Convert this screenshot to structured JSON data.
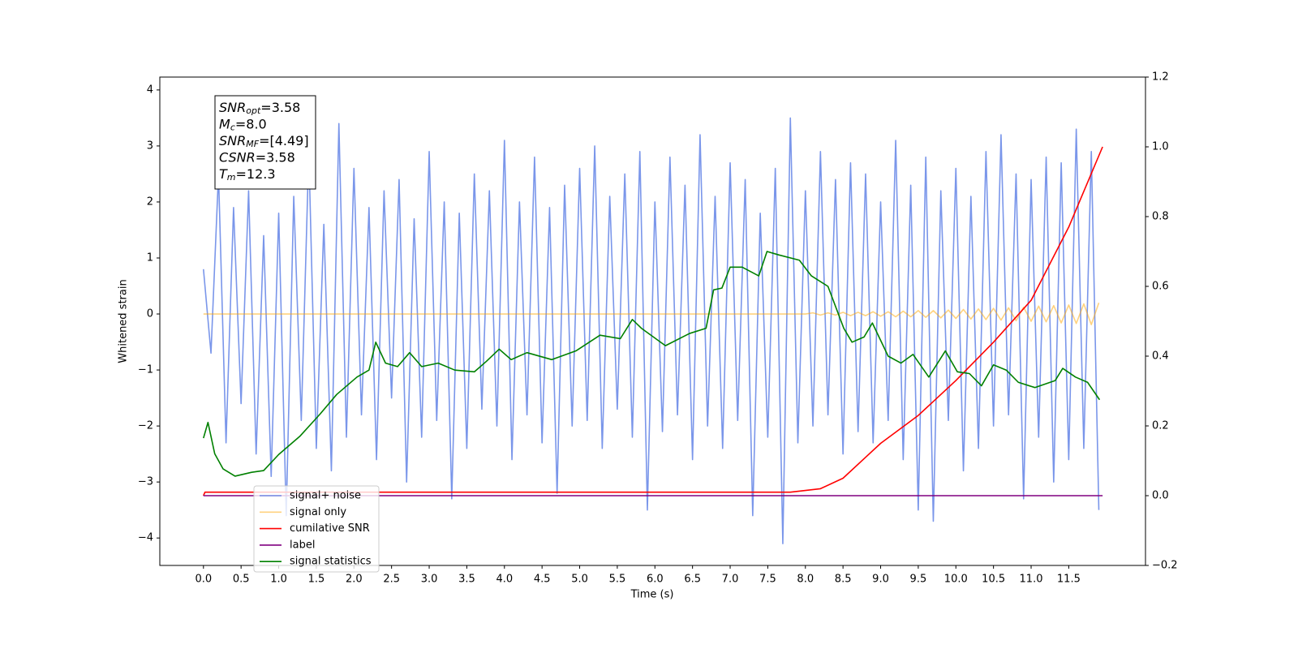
{
  "chart_data": {
    "type": "line",
    "x_label": "Time (s)",
    "y_label": "Whitened strain",
    "xlim": [
      -0.58,
      12.52
    ],
    "ylim": [
      -4.49,
      4.23
    ],
    "y2lim": [
      -0.2,
      1.2
    ],
    "xticks": [
      {
        "value": 0,
        "label": "0.0"
      },
      0.5,
      {
        "value": 1,
        "label": "1.0"
      },
      1.5,
      {
        "value": 2,
        "label": "2.0"
      },
      2.5,
      {
        "value": 3,
        "label": "3.0"
      },
      3.5,
      {
        "value": 4,
        "label": "4.0"
      },
      4.5,
      {
        "value": 5,
        "label": "5.0"
      },
      5.5,
      {
        "value": 6,
        "label": "6.0"
      },
      6.5,
      {
        "value": 7,
        "label": "7.0"
      },
      7.5,
      {
        "value": 8,
        "label": "8.0"
      },
      8.5,
      {
        "value": 9,
        "label": "9.0"
      },
      9.5,
      {
        "value": 10,
        "label": "10.0"
      },
      10.5,
      {
        "value": 11,
        "label": "11.0"
      },
      11.5
    ],
    "yticks": [
      {
        "value": -4,
        "label": "−4"
      },
      {
        "value": -3,
        "label": "−3"
      },
      {
        "value": -2,
        "label": "−2"
      },
      {
        "value": -1,
        "label": "−1"
      },
      0,
      1,
      2,
      3,
      4
    ],
    "y2ticks": [
      {
        "value": -0.2,
        "label": "−0.2"
      },
      {
        "value": 0,
        "label": "0.0"
      },
      0.2,
      0.4,
      0.6,
      0.8,
      {
        "value": 1,
        "label": "1.0"
      },
      1.2
    ],
    "legend_position": "lower left",
    "annotations": [
      {
        "main": "SNR",
        "sub": "opt",
        "rest": "=3.58"
      },
      {
        "main": "M",
        "sub": "c",
        "rest": "=8.0"
      },
      {
        "main": "SNR",
        "sub": "MF",
        "rest": "=[4.49]"
      },
      {
        "main": "CSNR",
        "rest": "=3.58"
      },
      {
        "main": "T",
        "sub": "m",
        "rest": "=12.3"
      }
    ],
    "series": [
      {
        "name": "signal+ noise",
        "color": "#4169e1",
        "alpha": 0.7,
        "x": [
          0,
          0.1,
          0.2,
          0.3,
          0.4,
          0.5,
          0.6,
          0.7,
          0.8,
          0.9,
          1,
          1.1,
          1.2,
          1.3,
          1.4,
          1.5,
          1.6,
          1.7,
          1.8,
          1.9,
          2,
          2.1,
          2.2,
          2.3,
          2.4,
          2.5,
          2.6,
          2.7,
          2.8,
          2.9,
          3,
          3.1,
          3.2,
          3.3,
          3.4,
          3.5,
          3.6,
          3.7,
          3.8,
          3.9,
          4,
          4.1,
          4.2,
          4.3,
          4.4,
          4.5,
          4.6,
          4.7,
          4.8,
          4.9,
          5,
          5.1,
          5.2,
          5.3,
          5.4,
          5.5,
          5.6,
          5.7,
          5.8,
          5.9,
          6,
          6.1,
          6.2,
          6.3,
          6.4,
          6.5,
          6.6,
          6.7,
          6.8,
          6.9,
          7,
          7.1,
          7.2,
          7.3,
          7.4,
          7.5,
          7.6,
          7.7,
          7.8,
          7.9,
          8,
          8.1,
          8.2,
          8.3,
          8.4,
          8.5,
          8.6,
          8.7,
          8.8,
          8.9,
          9,
          9.1,
          9.2,
          9.3,
          9.4,
          9.5,
          9.6,
          9.7,
          9.8,
          9.9,
          10,
          10.1,
          10.2,
          10.3,
          10.4,
          10.5,
          10.6,
          10.7,
          10.8,
          10.9,
          11,
          11.1,
          11.2,
          11.3,
          11.4,
          11.5,
          11.6,
          11.7,
          11.8,
          11.9
        ],
        "values": [
          0.8,
          -0.7,
          2.5,
          -2.3,
          1.9,
          -1.6,
          2.2,
          -2.5,
          1.4,
          -2.9,
          1.8,
          -3.6,
          2.1,
          -1.9,
          2.9,
          -2.4,
          1.6,
          -2.8,
          3.4,
          -2.2,
          2.6,
          -1.8,
          1.9,
          -2.6,
          2.2,
          -1.5,
          2.4,
          -3.0,
          1.7,
          -2.2,
          2.9,
          -1.9,
          2.0,
          -3.3,
          1.8,
          -2.4,
          2.5,
          -1.7,
          2.2,
          -2.0,
          3.1,
          -2.6,
          2.0,
          -1.8,
          2.8,
          -2.3,
          1.9,
          -3.2,
          2.3,
          -2.0,
          2.6,
          -1.9,
          3.0,
          -2.4,
          2.1,
          -1.7,
          2.5,
          -2.2,
          2.9,
          -3.5,
          2.0,
          -2.1,
          2.8,
          -1.8,
          2.3,
          -2.6,
          3.2,
          -2.0,
          2.1,
          -2.4,
          2.7,
          -1.9,
          2.4,
          -3.6,
          1.8,
          -2.2,
          2.6,
          -4.1,
          3.5,
          -2.3,
          2.2,
          -2.0,
          2.9,
          -1.8,
          2.4,
          -2.5,
          2.7,
          -2.1,
          2.5,
          -2.3,
          2.0,
          -1.9,
          3.1,
          -2.6,
          2.3,
          -3.5,
          2.8,
          -3.7,
          2.2,
          -1.9,
          2.6,
          -2.8,
          2.1,
          -2.4,
          2.9,
          -2.0,
          3.2,
          -1.8,
          2.5,
          -3.3,
          2.4,
          -2.2,
          2.8,
          -3.0,
          2.7,
          -2.6,
          3.3,
          -2.4,
          2.9,
          -3.5
        ]
      },
      {
        "name": "signal only",
        "color": "#ffa500",
        "alpha": 0.5,
        "x": [
          0,
          8,
          8.1,
          8.2,
          8.3,
          8.4,
          8.5,
          8.6,
          8.7,
          8.8,
          8.9,
          9,
          9.1,
          9.2,
          9.3,
          9.4,
          9.5,
          9.6,
          9.7,
          9.8,
          9.9,
          10,
          10.1,
          10.2,
          10.3,
          10.4,
          10.5,
          10.6,
          10.7,
          10.8,
          10.9,
          11,
          11.1,
          11.2,
          11.3,
          11.4,
          11.5,
          11.6,
          11.7,
          11.8,
          11.9
        ],
        "values": [
          0,
          0,
          0.02,
          -0.02,
          0.02,
          -0.02,
          0.03,
          -0.03,
          0.03,
          -0.03,
          0.04,
          -0.04,
          0.04,
          -0.05,
          0.05,
          -0.05,
          0.06,
          -0.06,
          0.06,
          -0.07,
          0.07,
          -0.08,
          0.08,
          -0.09,
          0.09,
          -0.1,
          0.1,
          -0.11,
          0.11,
          -0.12,
          0.12,
          -0.13,
          0.14,
          -0.14,
          0.15,
          -0.16,
          0.16,
          -0.17,
          0.18,
          -0.19,
          0.2
        ]
      },
      {
        "name": "cumilative SNR",
        "color": "#ff0000",
        "axis": "y2",
        "x": [
          0,
          0.02,
          7.8,
          8.2,
          8.5,
          8.8,
          9,
          9.5,
          10,
          10.5,
          11,
          11.5,
          11.95
        ],
        "values": [
          0,
          0.01,
          0.01,
          0.02,
          0.05,
          0.11,
          0.15,
          0.23,
          0.33,
          0.44,
          0.56,
          0.77,
          1.0
        ]
      },
      {
        "name": "label",
        "color": "#800080",
        "axis": "y2",
        "x": [
          0,
          11.95
        ],
        "values": [
          0,
          0
        ]
      },
      {
        "name": "signal statistics",
        "color": "#008000",
        "axis": "y2",
        "x": [
          0,
          0.06,
          0.15,
          0.26,
          0.42,
          0.64,
          0.8,
          1.0,
          1.28,
          1.55,
          1.77,
          2.04,
          2.2,
          2.29,
          2.42,
          2.58,
          2.74,
          2.9,
          3.12,
          3.34,
          3.6,
          3.76,
          3.93,
          4.09,
          4.3,
          4.63,
          4.95,
          5.27,
          5.54,
          5.7,
          5.82,
          6.14,
          6.46,
          6.68,
          6.78,
          6.89,
          7.0,
          7.16,
          7.38,
          7.49,
          7.65,
          7.92,
          8.08,
          8.3,
          8.51,
          8.62,
          8.78,
          8.89,
          9.1,
          9.27,
          9.43,
          9.64,
          9.86,
          10.02,
          10.18,
          10.34,
          10.5,
          10.67,
          10.83,
          11.05,
          11.32,
          11.42,
          11.59,
          11.75,
          11.91
        ],
        "values": [
          0.165,
          0.21,
          0.12,
          0.077,
          0.056,
          0.067,
          0.072,
          0.118,
          0.17,
          0.234,
          0.29,
          0.34,
          0.36,
          0.44,
          0.38,
          0.37,
          0.41,
          0.37,
          0.38,
          0.36,
          0.355,
          0.385,
          0.42,
          0.39,
          0.41,
          0.39,
          0.415,
          0.46,
          0.45,
          0.505,
          0.48,
          0.43,
          0.465,
          0.48,
          0.59,
          0.595,
          0.655,
          0.655,
          0.63,
          0.7,
          0.69,
          0.675,
          0.63,
          0.6,
          0.48,
          0.44,
          0.455,
          0.495,
          0.4,
          0.38,
          0.405,
          0.34,
          0.415,
          0.355,
          0.35,
          0.315,
          0.375,
          0.36,
          0.325,
          0.31,
          0.33,
          0.365,
          0.34,
          0.325,
          0.275
        ]
      }
    ]
  }
}
